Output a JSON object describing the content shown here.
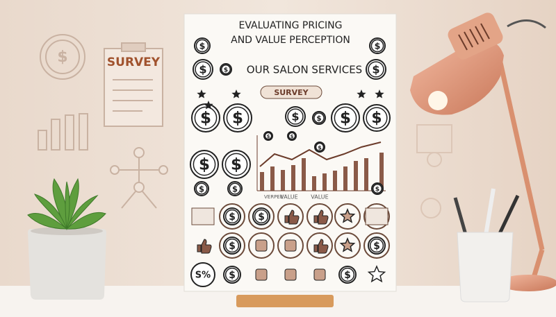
{
  "poster": {
    "title_lines": [
      "EVALUATING PRICING",
      "AND VALUE PERCEPTION"
    ],
    "subtitle": "OUR SALON SERVICES",
    "badge": "SURVEY",
    "chart_labels": [
      "VERPEE",
      "VALUE",
      "VALUE"
    ],
    "percent_icon": "S%"
  },
  "clipboard": {
    "label": "SURVEY"
  },
  "symbols": {
    "dollar": "$"
  }
}
